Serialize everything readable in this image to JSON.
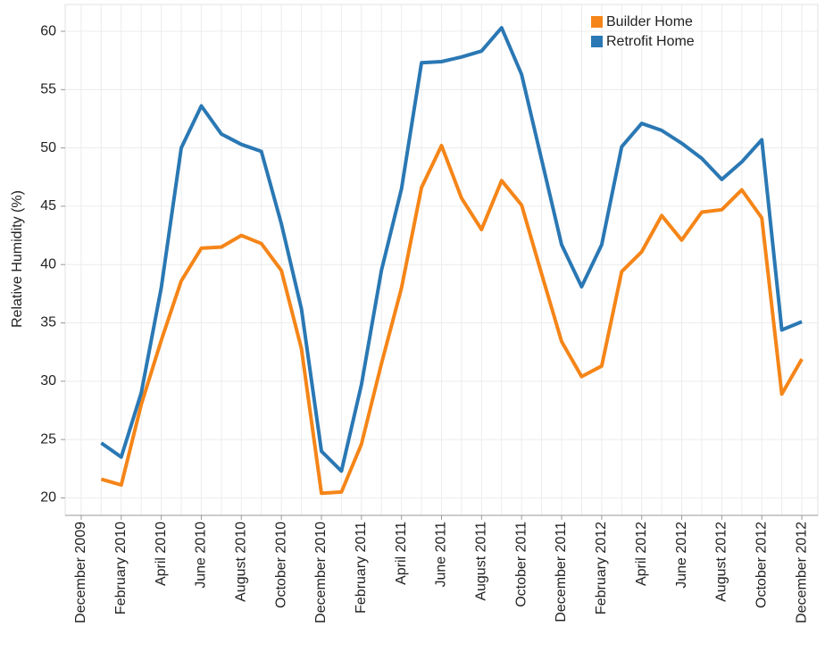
{
  "chart_data": {
    "type": "line",
    "ylabel": "Relative Humidity (%)",
    "categories": [
      "December 2009",
      null,
      "February 2010",
      null,
      "April 2010",
      null,
      "June 2010",
      null,
      "August 2010",
      null,
      "October 2010",
      null,
      "December 2010",
      null,
      "February 2011",
      null,
      "April 2011",
      null,
      "June 2011",
      null,
      "August 2011",
      null,
      "October 2011",
      null,
      "December 2011",
      null,
      "February 2012",
      null,
      "April 2012",
      null,
      "June 2012",
      null,
      "August 2012",
      null,
      "October 2012",
      null,
      "December 2012"
    ],
    "series": [
      {
        "name": "Builder Home",
        "color": "#f58518",
        "values": [
          null,
          21.6,
          21.1,
          28,
          33.5,
          38.6,
          41.4,
          41.5,
          42.5,
          41.8,
          39.5,
          32.8,
          20.4,
          20.5,
          24.6,
          31.5,
          38,
          46.6,
          50.2,
          45.7,
          43,
          47.2,
          45.1,
          39.2,
          33.4,
          30.4,
          31.3,
          39.4,
          41.1,
          44.2,
          42.1,
          44.5,
          44.7,
          46.4,
          44,
          28.9,
          31.9
        ]
      },
      {
        "name": "Retrofit Home",
        "color": "#2a78b4",
        "values": [
          null,
          24.7,
          23.5,
          29,
          38,
          50,
          53.6,
          51.2,
          50.3,
          49.7,
          43.5,
          36.2,
          24,
          22.3,
          29.7,
          39.5,
          46.5,
          57.3,
          57.4,
          57.8,
          58.3,
          60.3,
          56.3,
          49,
          41.7,
          38.1,
          41.7,
          50.1,
          52.1,
          51.5,
          50.4,
          49.1,
          47.3,
          48.8,
          50.7,
          34.4,
          35.1
        ]
      }
    ],
    "ylim": [
      18.5,
      62.3
    ],
    "yticks": [
      20,
      25,
      30,
      35,
      40,
      45,
      50,
      55,
      60
    ],
    "grid": true,
    "legend": "top-right"
  }
}
